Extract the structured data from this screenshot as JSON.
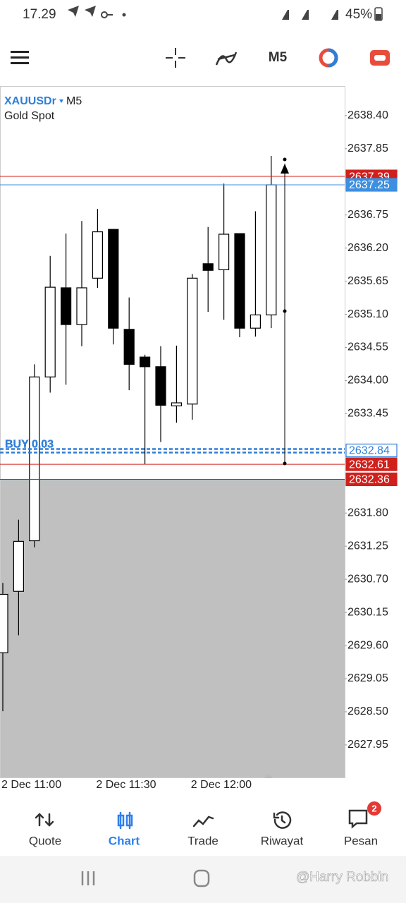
{
  "status_bar": {
    "time": "17.29",
    "battery": "45%"
  },
  "toolbar": {
    "timeframe": "M5"
  },
  "chart_data": {
    "type": "candlestick",
    "symbol": "XAUUSDr",
    "timeframe": "M5",
    "description": "Gold Spot",
    "categories": [
      "2 Dec 11:00",
      null,
      null,
      null,
      null,
      null,
      "2 Dec 11:30",
      null,
      null,
      null,
      null,
      null,
      "2 Dec 12:00",
      null,
      null,
      null,
      null,
      null
    ],
    "open": [
      2629.48,
      2630.5,
      2631.34,
      2634.06,
      2635.54,
      2634.93,
      2635.7,
      2636.51,
      2634.85,
      2634.39,
      2634.23,
      2633.58,
      2633.61,
      2635.94,
      2635.84,
      2636.44,
      2634.87,
      2635.09
    ],
    "high": [
      2630.64,
      2631.69,
      2634.27,
      2636.07,
      2636.44,
      2636.65,
      2636.85,
      2636.51,
      2635.38,
      2634.43,
      2634.57,
      2634.58,
      2635.77,
      2636.55,
      2637.27,
      2636.44,
      2636.81,
      2637.73
    ],
    "low": [
      2628.51,
      2629.77,
      2631.23,
      2633.8,
      2633.93,
      2634.57,
      2635.54,
      2634.6,
      2633.84,
      2632.61,
      2632.98,
      2633.3,
      2633.35,
      2635.14,
      2635.01,
      2634.72,
      2634.73,
      2634.87
    ],
    "close": [
      2630.45,
      2631.33,
      2634.06,
      2635.55,
      2634.93,
      2635.54,
      2636.47,
      2634.87,
      2634.27,
      2634.23,
      2633.59,
      2633.63,
      2635.7,
      2635.83,
      2636.43,
      2634.87,
      2635.09,
      2637.25
    ],
    "up_color": "#ffffff",
    "down_color": "#000000",
    "ylim": [
      2627.41,
      2638.89
    ],
    "yticks": [
      {
        "value": 2638.4,
        "label": "2638.40"
      },
      {
        "value": 2637.85,
        "label": "2637.85"
      },
      {
        "value": 2636.75,
        "label": "2636.75"
      },
      {
        "value": 2636.2,
        "label": "2636.20"
      },
      {
        "value": 2635.65,
        "label": "2635.65"
      },
      {
        "value": 2635.1,
        "label": "2635.10"
      },
      {
        "value": 2634.55,
        "label": "2634.55"
      },
      {
        "value": 2634.0,
        "label": "2634.00"
      },
      {
        "value": 2633.45,
        "label": "2633.45"
      },
      {
        "value": 2631.8,
        "label": "2631.80"
      },
      {
        "value": 2631.25,
        "label": "2631.25"
      },
      {
        "value": 2630.7,
        "label": "2630.70"
      },
      {
        "value": 2630.15,
        "label": "2630.15"
      },
      {
        "value": 2629.6,
        "label": "2629.60"
      },
      {
        "value": 2629.05,
        "label": "2629.05"
      },
      {
        "value": 2628.5,
        "label": "2628.50"
      },
      {
        "value": 2627.95,
        "label": "2627.95"
      }
    ],
    "levels": [
      {
        "value": 2637.39,
        "label": "2637.39",
        "color": "#d0201c",
        "style": "filled"
      },
      {
        "value": 2637.25,
        "label": "2637.25",
        "color": "#3d8fe0",
        "style": "filled"
      },
      {
        "value": 2632.84,
        "label": "2632.84",
        "color": "#2f7fd8",
        "style": "outline",
        "dashed": true,
        "tag": "BUY 0.03"
      },
      {
        "value": 2632.61,
        "label": "2632.61",
        "color": "#d0201c",
        "style": "filled"
      },
      {
        "value": 2632.36,
        "label": "2632.36",
        "color": "#d0201c",
        "style": "filled",
        "shade_below": true
      }
    ]
  },
  "nav": {
    "items": [
      "Quote",
      "Chart",
      "Trade",
      "Riwayat",
      "Pesan"
    ],
    "active": 1,
    "badge": "2"
  },
  "watermark": "@Harry Robbin"
}
